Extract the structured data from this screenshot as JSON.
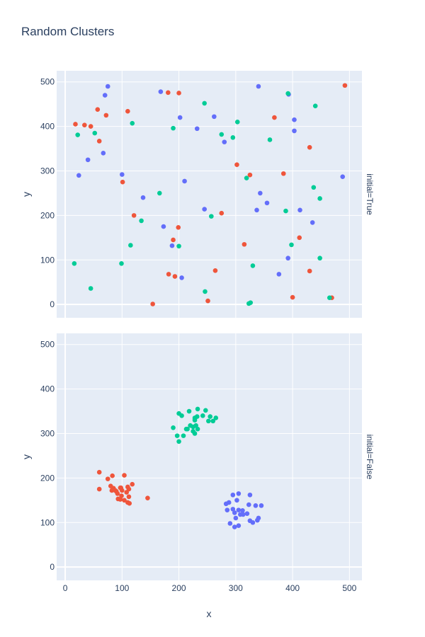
{
  "chart_data": {
    "type": "scatter",
    "title": "Random Clusters",
    "xlabel": "x",
    "ylabel": "y",
    "xlim": [
      -15,
      522
    ],
    "ylim": [
      -30,
      525
    ],
    "xticks": [
      0,
      100,
      200,
      300,
      400,
      500
    ],
    "yticks": [
      0,
      100,
      200,
      300,
      400,
      500
    ],
    "grid": true,
    "legend": "none",
    "colors": [
      "#636efa",
      "#ef553b",
      "#00cc96"
    ],
    "facets": [
      {
        "label": "initial=True",
        "series": [
          {
            "color": "#636efa",
            "points": [
              [
                75,
                490
              ],
              [
                168,
                478
              ],
              [
                340,
                490
              ],
              [
                70,
                470
              ],
              [
                393,
                472
              ],
              [
                202,
                420
              ],
              [
                262,
                422
              ],
              [
                403,
                415
              ],
              [
                232,
                395
              ],
              [
                403,
                390
              ],
              [
                280,
                365
              ],
              [
                67,
                340
              ],
              [
                40,
                325
              ],
              [
                24,
                290
              ],
              [
                100,
                292
              ],
              [
                488,
                287
              ],
              [
                210,
                277
              ],
              [
                343,
                250
              ],
              [
                137,
                240
              ],
              [
                355,
                228
              ],
              [
                413,
                212
              ],
              [
                245,
                214
              ],
              [
                337,
                212
              ],
              [
                435,
                184
              ],
              [
                173,
                175
              ],
              [
                188,
                132
              ],
              [
                392,
                104
              ],
              [
                376,
                68
              ],
              [
                205,
                60
              ]
            ]
          },
          {
            "color": "#ef553b",
            "points": [
              [
                492,
                492
              ],
              [
                181,
                476
              ],
              [
                200,
                475
              ],
              [
                57,
                438
              ],
              [
                110,
                434
              ],
              [
                72,
                425
              ],
              [
                368,
                420
              ],
              [
                18,
                405
              ],
              [
                34,
                403
              ],
              [
                45,
                400
              ],
              [
                60,
                367
              ],
              [
                430,
                353
              ],
              [
                302,
                314
              ],
              [
                325,
                291
              ],
              [
                384,
                294
              ],
              [
                101,
                275
              ],
              [
                275,
                205
              ],
              [
                121,
                200
              ],
              [
                199,
                173
              ],
              [
                412,
                150
              ],
              [
                190,
                145
              ],
              [
                315,
                135
              ],
              [
                264,
                76
              ],
              [
                430,
                75
              ],
              [
                182,
                68
              ],
              [
                193,
                63
              ],
              [
                400,
                16
              ],
              [
                469,
                15
              ],
              [
                251,
                8
              ],
              [
                154,
                1
              ]
            ]
          },
          {
            "color": "#00cc96",
            "points": [
              [
                392,
                474
              ],
              [
                245,
                452
              ],
              [
                440,
                446
              ],
              [
                118,
                407
              ],
              [
                303,
                410
              ],
              [
                190,
                396
              ],
              [
                52,
                385
              ],
              [
                22,
                381
              ],
              [
                275,
                382
              ],
              [
                295,
                375
              ],
              [
                360,
                370
              ],
              [
                319,
                284
              ],
              [
                437,
                263
              ],
              [
                166,
                250
              ],
              [
                448,
                238
              ],
              [
                388,
                210
              ],
              [
                257,
                198
              ],
              [
                134,
                188
              ],
              [
                115,
                133
              ],
              [
                200,
                131
              ],
              [
                398,
                134
              ],
              [
                330,
                87
              ],
              [
                448,
                104
              ],
              [
                16,
                92
              ],
              [
                99,
                92
              ],
              [
                45,
                36
              ],
              [
                246,
                29
              ],
              [
                465,
                15
              ],
              [
                323,
                2
              ],
              [
                326,
                4
              ]
            ]
          }
        ]
      },
      {
        "label": "initial=False",
        "series": [
          {
            "color": "#636efa",
            "points": [
              [
                295,
                162
              ],
              [
                305,
                165
              ],
              [
                325,
                162
              ],
              [
                288,
                145
              ],
              [
                302,
                150
              ],
              [
                323,
                140
              ],
              [
                283,
                142
              ],
              [
                285,
                128
              ],
              [
                295,
                130
              ],
              [
                305,
                128
              ],
              [
                312,
                127
              ],
              [
                320,
                120
              ],
              [
                298,
                122
              ],
              [
                308,
                118
              ],
              [
                335,
                138
              ],
              [
                345,
                138
              ],
              [
                300,
                110
              ],
              [
                313,
                118
              ],
              [
                325,
                104
              ],
              [
                330,
                100
              ],
              [
                340,
                110
              ],
              [
                338,
                105
              ],
              [
                290,
                98
              ],
              [
                298,
                90
              ],
              [
                305,
                93
              ]
            ]
          },
          {
            "color": "#ef553b",
            "points": [
              [
                60,
                213
              ],
              [
                83,
                205
              ],
              [
                104,
                206
              ],
              [
                75,
                198
              ],
              [
                80,
                182
              ],
              [
                85,
                177
              ],
              [
                97,
                178
              ],
              [
                110,
                180
              ],
              [
                118,
                186
              ],
              [
                60,
                175
              ],
              [
                82,
                172
              ],
              [
                90,
                170
              ],
              [
                100,
                172
              ],
              [
                108,
                168
              ],
              [
                92,
                165
              ],
              [
                112,
                158
              ],
              [
                99,
                160
              ],
              [
                97,
                152
              ],
              [
                104,
                150
              ],
              [
                93,
                153
              ],
              [
                110,
                145
              ],
              [
                113,
                143
              ],
              [
                145,
                155
              ],
              [
                98,
                178
              ],
              [
                112,
                175
              ],
              [
                88,
                172
              ]
            ]
          },
          {
            "color": "#00cc96",
            "points": [
              [
                233,
                355
              ],
              [
                218,
                350
              ],
              [
                247,
                352
              ],
              [
                200,
                345
              ],
              [
                205,
                340
              ],
              [
                232,
                338
              ],
              [
                242,
                340
              ],
              [
                255,
                338
              ],
              [
                228,
                330
              ],
              [
                265,
                335
              ],
              [
                252,
                328
              ],
              [
                260,
                328
              ],
              [
                190,
                313
              ],
              [
                213,
                310
              ],
              [
                220,
                318
              ],
              [
                230,
                318
              ],
              [
                225,
                315
              ],
              [
                233,
                310
              ],
              [
                215,
                310
              ],
              [
                225,
                305
              ],
              [
                208,
                295
              ],
              [
                228,
                300
              ],
              [
                197,
                295
              ],
              [
                200,
                282
              ],
              [
                228,
                335
              ]
            ]
          }
        ]
      }
    ]
  }
}
